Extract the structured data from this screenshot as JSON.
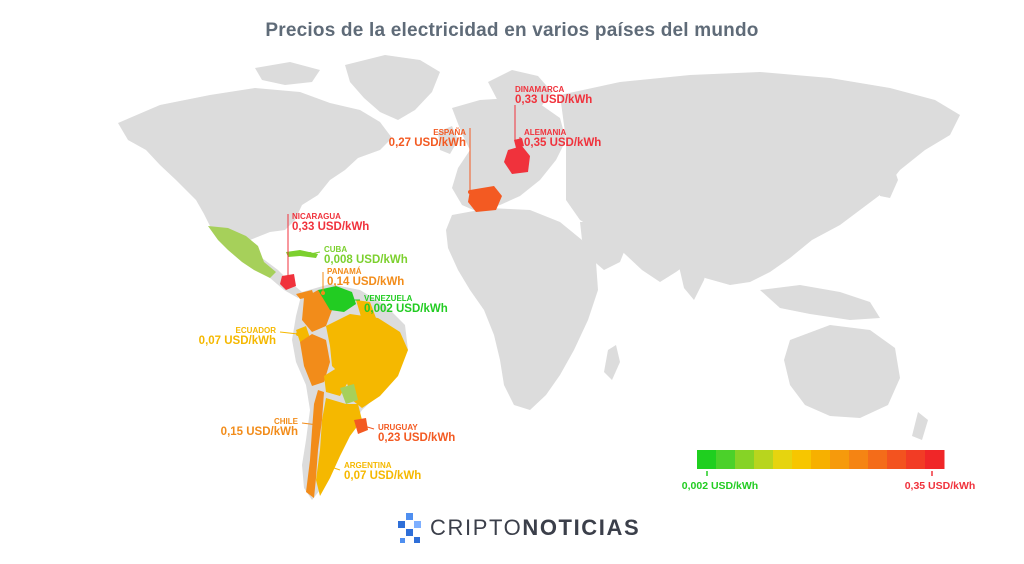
{
  "title": "Precios de la electricidad en varios países del mundo",
  "countries": [
    {
      "id": "dinamarca",
      "name": "DINAMARCA",
      "value": "0,33 USD/kWh",
      "color": "#f0323c"
    },
    {
      "id": "alemania",
      "name": "ALEMANIA",
      "value": "0,35 USD/kWh",
      "color": "#f0323c"
    },
    {
      "id": "espana",
      "name": "ESPAÑA",
      "value": "0,27 USD/kWh",
      "color": "#f35a22"
    },
    {
      "id": "nicaragua",
      "name": "NICARAGUA",
      "value": "0,33 USD/kWh",
      "color": "#f0323c"
    },
    {
      "id": "cuba",
      "name": "CUBA",
      "value": "0,008 USD/kWh",
      "color": "#7cd02e"
    },
    {
      "id": "panama",
      "name": "PANAMÁ",
      "value": "0,14 USD/kWh",
      "color": "#f28c1a"
    },
    {
      "id": "venezuela",
      "name": "VENEZUELA",
      "value": "0,002 USD/kWh",
      "color": "#22cc22"
    },
    {
      "id": "ecuador",
      "name": "ECUADOR",
      "value": "0,07 USD/kWh",
      "color": "#f5b800"
    },
    {
      "id": "chile",
      "name": "CHILE",
      "value": "0,15 USD/kWh",
      "color": "#f28c1a"
    },
    {
      "id": "uruguay",
      "name": "URUGUAY",
      "value": "0,23 USD/kWh",
      "color": "#f35a22"
    },
    {
      "id": "argentina",
      "name": "ARGENTINA",
      "value": "0,07 USD/kWh",
      "color": "#f5b800"
    }
  ],
  "legend": {
    "min_label": "0,002 USD/kWh",
    "max_label": "0,35 USD/kWh",
    "min_color": "#22cc22",
    "max_color": "#f0323c",
    "colors": [
      "#1fcf1f",
      "#4bd12a",
      "#86d326",
      "#b8d51e",
      "#e6d40f",
      "#f7c600",
      "#f7b000",
      "#f69a0c",
      "#f58413",
      "#f46c19",
      "#f3531f",
      "#f23c25",
      "#f02628"
    ]
  },
  "logo": {
    "brand_part1": "CRIPTO",
    "brand_part2": "NOTICIAS",
    "icon": "cube-logo-icon"
  }
}
